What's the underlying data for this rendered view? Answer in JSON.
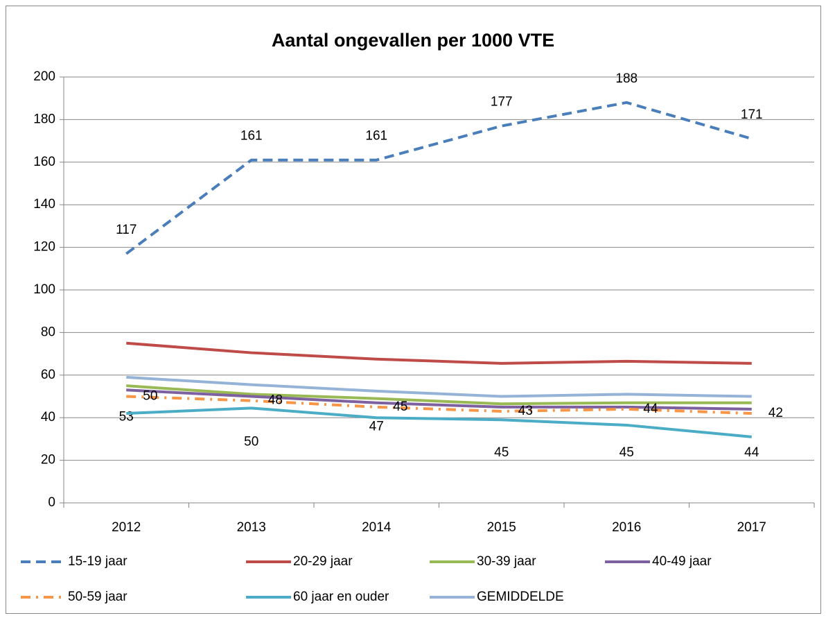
{
  "chart_data": {
    "type": "line",
    "title": "Aantal ongevallen per 1000 VTE",
    "categories": [
      "2012",
      "2013",
      "2014",
      "2015",
      "2016",
      "2017"
    ],
    "ylim": [
      0,
      200
    ],
    "yticks": [
      0,
      20,
      40,
      60,
      80,
      100,
      120,
      140,
      160,
      180,
      200
    ],
    "grid": true,
    "legend": "bottom",
    "series": [
      {
        "name": "15-19 jaar",
        "color": "#4a7ebb",
        "dash": "dash",
        "data_labels": "above",
        "values": [
          117,
          161,
          161,
          177,
          188,
          171
        ]
      },
      {
        "name": "20-29 jaar",
        "color": "#be4b48",
        "dash": "solid",
        "values": [
          75,
          70.5,
          67.5,
          65.5,
          66.5,
          65.5
        ]
      },
      {
        "name": "30-39 jaar",
        "color": "#98b954",
        "dash": "solid",
        "values": [
          55,
          51,
          49,
          46.5,
          47,
          47
        ]
      },
      {
        "name": "40-49 jaar",
        "color": "#7d60a0",
        "dash": "solid",
        "data_labels": "below",
        "values": [
          53,
          50,
          47,
          45,
          45,
          44
        ]
      },
      {
        "name": "50-59 jaar",
        "color": "#f79646",
        "dash": "dashdot",
        "data_labels": "right",
        "values": [
          50,
          48,
          45,
          43,
          44,
          42
        ]
      },
      {
        "name": "60 jaar en ouder",
        "color": "#4bacc6",
        "dash": "solid",
        "values": [
          42,
          44.5,
          40,
          39,
          36.5,
          31
        ]
      },
      {
        "name": "GEMIDDELDE",
        "color": "#95b3d7",
        "dash": "solid",
        "values": [
          59,
          55.5,
          52.5,
          50,
          51,
          50
        ]
      }
    ]
  }
}
